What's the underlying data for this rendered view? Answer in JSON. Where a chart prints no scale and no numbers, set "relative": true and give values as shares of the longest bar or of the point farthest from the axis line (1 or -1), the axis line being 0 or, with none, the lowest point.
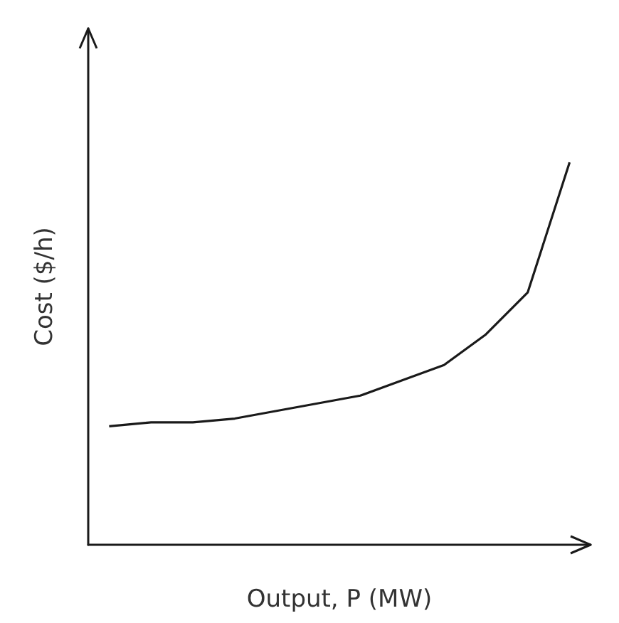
{
  "chart_data": {
    "type": "line",
    "relative": true,
    "xlabel": "Output, P (MW)",
    "ylabel": "Cost ($/h)",
    "categories": [
      null,
      null,
      null,
      null,
      null,
      null,
      null,
      null,
      null,
      null,
      null,
      null
    ],
    "series": [
      {
        "color": "#1a1a1a",
        "values": [
          0.31,
          0.32,
          0.32,
          0.33,
          0.35,
          0.37,
          0.39,
          0.43,
          0.47,
          0.55,
          0.66,
          1.0
        ]
      }
    ],
    "marker": "none",
    "line_style": "solid"
  }
}
